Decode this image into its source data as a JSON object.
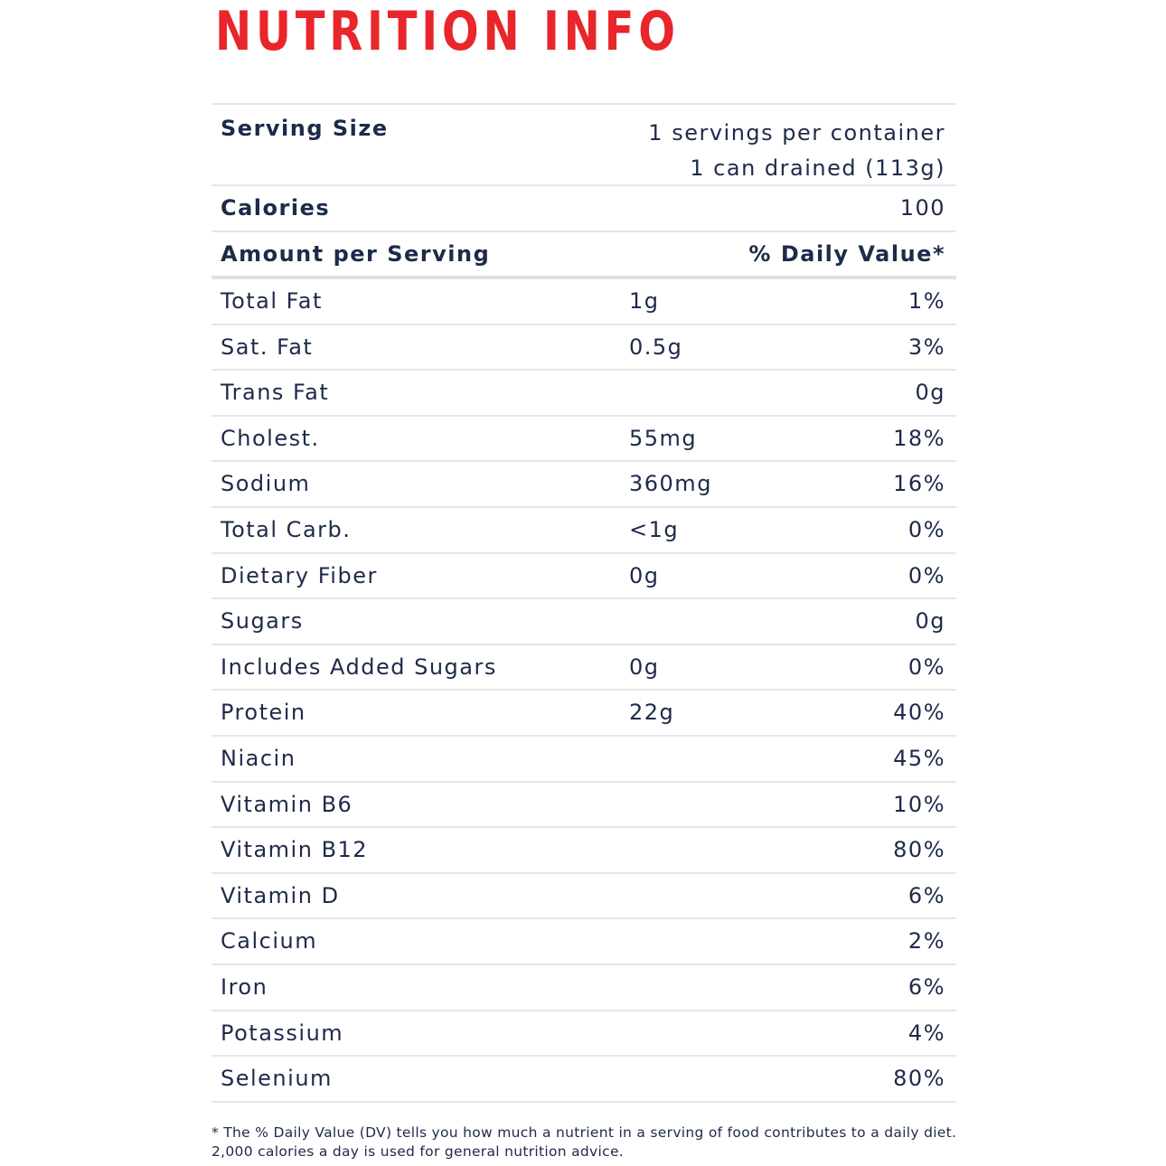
{
  "title": "NUTRITION INFO",
  "serving": {
    "label": "Serving Size",
    "per_container": "1 servings per container",
    "size": "1 can drained (113g)"
  },
  "calories": {
    "label": "Calories",
    "value": "100"
  },
  "header": {
    "amount_label": "Amount per Serving",
    "dv_label": "% Daily Value*"
  },
  "nutrients": [
    {
      "name": "Total Fat",
      "amount": "1g",
      "dv": "1%"
    },
    {
      "name": "Sat. Fat",
      "amount": "0.5g",
      "dv": "3%"
    },
    {
      "name": "Trans Fat",
      "amount": "",
      "dv": "0g"
    },
    {
      "name": "Cholest.",
      "amount": "55mg",
      "dv": "18%"
    },
    {
      "name": "Sodium",
      "amount": "360mg",
      "dv": "16%"
    },
    {
      "name": "Total Carb.",
      "amount": "<1g",
      "dv": "0%"
    },
    {
      "name": "Dietary Fiber",
      "amount": "0g",
      "dv": "0%"
    },
    {
      "name": "Sugars",
      "amount": "",
      "dv": "0g"
    },
    {
      "name": "Includes Added Sugars",
      "amount": "0g",
      "dv": "0%"
    },
    {
      "name": "Protein",
      "amount": "22g",
      "dv": "40%"
    },
    {
      "name": "Niacin",
      "amount": "",
      "dv": "45%"
    },
    {
      "name": "Vitamin B6",
      "amount": "",
      "dv": "10%"
    },
    {
      "name": "Vitamin B12",
      "amount": "",
      "dv": "80%"
    },
    {
      "name": "Vitamin D",
      "amount": "",
      "dv": "6%"
    },
    {
      "name": "Calcium",
      "amount": "",
      "dv": "2%"
    },
    {
      "name": "Iron",
      "amount": "",
      "dv": "6%"
    },
    {
      "name": "Potassium",
      "amount": "",
      "dv": "4%"
    },
    {
      "name": "Selenium",
      "amount": "",
      "dv": "80%"
    }
  ],
  "footnote": "* The % Daily Value (DV) tells you how much a nutrient in a serving of food contributes to a daily diet. 2,000 calories a day is used for general nutrition advice.",
  "colors": {
    "title": "#e8262b",
    "text": "#1e2a4a",
    "rule": "#e3e6ec"
  }
}
